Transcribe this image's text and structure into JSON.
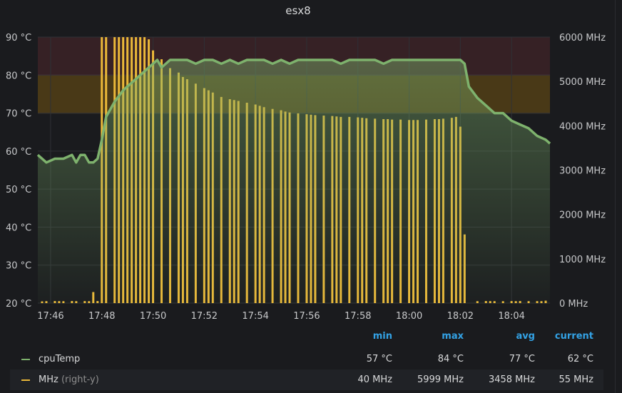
{
  "panel": {
    "title": "esx8"
  },
  "colors": {
    "background": "#1a1b1e",
    "temp_line": "#7eb26d",
    "mhz_bars": "#eab839",
    "threshold_warning": "#5a4416",
    "threshold_critical": "#3a2226",
    "legend_header": "#33a2e5"
  },
  "chart_data": {
    "type": "line+bar",
    "title": "esx8",
    "x_tick_labels": [
      "17:46",
      "17:48",
      "17:50",
      "17:52",
      "17:54",
      "17:56",
      "17:58",
      "18:00",
      "18:02",
      "18:04"
    ],
    "x_range": [
      "17:45:30",
      "18:05:30"
    ],
    "y_left": {
      "unit": "°C",
      "range": [
        20,
        90
      ],
      "tick_labels": [
        "20 °C",
        "30 °C",
        "40 °C",
        "50 °C",
        "60 °C",
        "70 °C",
        "80 °C",
        "90 °C"
      ]
    },
    "y_right": {
      "unit": "MHz",
      "range": [
        0,
        6000
      ],
      "tick_labels": [
        "0 MHz",
        "1000 MHz",
        "2000 MHz",
        "3000 MHz",
        "4000 MHz",
        "5000 MHz",
        "6000 MHz"
      ]
    },
    "thresholds": [
      {
        "from": 70,
        "to": 80,
        "level": "warning"
      },
      {
        "from": 80,
        "to": 90,
        "level": "critical"
      }
    ],
    "grid": true,
    "legend_placement": "bottom",
    "series": [
      {
        "name": "cpuTemp",
        "axis": "left",
        "style": "line-fill",
        "points": [
          [
            "17:45:30",
            59
          ],
          [
            "17:45:50",
            57
          ],
          [
            "17:46:10",
            58
          ],
          [
            "17:46:30",
            58
          ],
          [
            "17:46:50",
            59
          ],
          [
            "17:47:00",
            57
          ],
          [
            "17:47:10",
            59
          ],
          [
            "17:47:20",
            59
          ],
          [
            "17:47:30",
            57
          ],
          [
            "17:47:40",
            57
          ],
          [
            "17:47:50",
            58
          ],
          [
            "17:48:00",
            63
          ],
          [
            "17:48:10",
            69
          ],
          [
            "17:48:30",
            73
          ],
          [
            "17:48:50",
            76
          ],
          [
            "17:49:10",
            78
          ],
          [
            "17:49:30",
            80
          ],
          [
            "17:49:50",
            82
          ],
          [
            "17:50:00",
            83
          ],
          [
            "17:50:10",
            84
          ],
          [
            "17:50:20",
            82
          ],
          [
            "17:50:40",
            84
          ],
          [
            "17:51:00",
            84
          ],
          [
            "17:51:20",
            84
          ],
          [
            "17:51:40",
            83
          ],
          [
            "17:52:00",
            84
          ],
          [
            "17:52:20",
            84
          ],
          [
            "17:52:40",
            83
          ],
          [
            "17:53:00",
            84
          ],
          [
            "17:53:20",
            83
          ],
          [
            "17:53:40",
            84
          ],
          [
            "17:54:00",
            84
          ],
          [
            "17:54:20",
            84
          ],
          [
            "17:54:40",
            83
          ],
          [
            "17:55:00",
            84
          ],
          [
            "17:55:20",
            83
          ],
          [
            "17:55:40",
            84
          ],
          [
            "17:56:00",
            84
          ],
          [
            "17:56:20",
            84
          ],
          [
            "17:56:40",
            84
          ],
          [
            "17:57:00",
            84
          ],
          [
            "17:57:20",
            83
          ],
          [
            "17:57:40",
            84
          ],
          [
            "17:58:00",
            84
          ],
          [
            "17:58:20",
            84
          ],
          [
            "17:58:40",
            84
          ],
          [
            "17:59:00",
            83
          ],
          [
            "17:59:20",
            84
          ],
          [
            "17:59:40",
            84
          ],
          [
            "18:00:00",
            84
          ],
          [
            "18:00:20",
            84
          ],
          [
            "18:00:40",
            84
          ],
          [
            "18:01:00",
            84
          ],
          [
            "18:01:20",
            84
          ],
          [
            "18:01:40",
            84
          ],
          [
            "18:02:00",
            84
          ],
          [
            "18:02:10",
            83
          ],
          [
            "18:02:20",
            77
          ],
          [
            "18:02:40",
            74
          ],
          [
            "18:03:00",
            72
          ],
          [
            "18:03:20",
            70
          ],
          [
            "18:03:40",
            70
          ],
          [
            "18:04:00",
            68
          ],
          [
            "18:04:20",
            67
          ],
          [
            "18:04:40",
            66
          ],
          [
            "18:05:00",
            64
          ],
          [
            "18:05:20",
            63
          ],
          [
            "18:05:30",
            62
          ]
        ]
      },
      {
        "name": "MHz",
        "name_suffix": "(right-y)",
        "axis": "right",
        "style": "bars",
        "points": [
          [
            "17:45:40",
            40
          ],
          [
            "17:45:50",
            45
          ],
          [
            "17:46:10",
            48
          ],
          [
            "17:46:20",
            46
          ],
          [
            "17:46:30",
            44
          ],
          [
            "17:46:50",
            48
          ],
          [
            "17:47:00",
            45
          ],
          [
            "17:47:20",
            47
          ],
          [
            "17:47:30",
            45
          ],
          [
            "17:47:40",
            250
          ],
          [
            "17:47:50",
            48
          ],
          [
            "17:48:00",
            5999
          ],
          [
            "17:48:10",
            5999
          ],
          [
            "17:48:30",
            5999
          ],
          [
            "17:48:40",
            5999
          ],
          [
            "17:48:50",
            5999
          ],
          [
            "17:49:00",
            5999
          ],
          [
            "17:49:10",
            5999
          ],
          [
            "17:49:20",
            5999
          ],
          [
            "17:49:30",
            5999
          ],
          [
            "17:49:40",
            5999
          ],
          [
            "17:49:50",
            5950
          ],
          [
            "17:50:00",
            5700
          ],
          [
            "17:50:20",
            5500
          ],
          [
            "17:50:40",
            5300
          ],
          [
            "17:51:00",
            5200
          ],
          [
            "17:51:10",
            5100
          ],
          [
            "17:51:20",
            5050
          ],
          [
            "17:51:40",
            4950
          ],
          [
            "17:52:00",
            4850
          ],
          [
            "17:52:10",
            4800
          ],
          [
            "17:52:20",
            4750
          ],
          [
            "17:52:40",
            4650
          ],
          [
            "17:53:00",
            4600
          ],
          [
            "17:53:10",
            4580
          ],
          [
            "17:53:20",
            4560
          ],
          [
            "17:53:40",
            4520
          ],
          [
            "17:54:00",
            4480
          ],
          [
            "17:54:10",
            4450
          ],
          [
            "17:54:20",
            4420
          ],
          [
            "17:54:40",
            4380
          ],
          [
            "17:55:00",
            4350
          ],
          [
            "17:55:10",
            4320
          ],
          [
            "17:55:20",
            4300
          ],
          [
            "17:55:40",
            4280
          ],
          [
            "17:56:00",
            4260
          ],
          [
            "17:56:10",
            4250
          ],
          [
            "17:56:20",
            4240
          ],
          [
            "17:56:40",
            4230
          ],
          [
            "17:57:00",
            4220
          ],
          [
            "17:57:10",
            4210
          ],
          [
            "17:57:20",
            4200
          ],
          [
            "17:57:40",
            4200
          ],
          [
            "17:58:00",
            4190
          ],
          [
            "17:58:10",
            4180
          ],
          [
            "17:58:20",
            4170
          ],
          [
            "17:58:40",
            4160
          ],
          [
            "17:59:00",
            4150
          ],
          [
            "17:59:10",
            4150
          ],
          [
            "17:59:20",
            4140
          ],
          [
            "17:59:40",
            4140
          ],
          [
            "18:00:00",
            4130
          ],
          [
            "18:00:10",
            4130
          ],
          [
            "18:00:20",
            4130
          ],
          [
            "18:00:40",
            4140
          ],
          [
            "18:01:00",
            4150
          ],
          [
            "18:01:10",
            4150
          ],
          [
            "18:01:20",
            4160
          ],
          [
            "18:01:40",
            4180
          ],
          [
            "18:01:50",
            4200
          ],
          [
            "18:02:00",
            3980
          ],
          [
            "18:02:10",
            1550
          ],
          [
            "18:02:40",
            45
          ],
          [
            "18:03:00",
            48
          ],
          [
            "18:03:10",
            46
          ],
          [
            "18:03:20",
            45
          ],
          [
            "18:03:40",
            44
          ],
          [
            "18:04:00",
            47
          ],
          [
            "18:04:10",
            45
          ],
          [
            "18:04:20",
            48
          ],
          [
            "18:04:40",
            45
          ],
          [
            "18:05:00",
            46
          ],
          [
            "18:05:10",
            45
          ],
          [
            "18:05:20",
            55
          ]
        ]
      }
    ]
  },
  "legend": {
    "headers": {
      "min": "min",
      "max": "max",
      "avg": "avg",
      "current": "current"
    },
    "rows": [
      {
        "name": "cpuTemp",
        "suffix": "",
        "color": "#7eb26d",
        "min": "57 °C",
        "max": "84 °C",
        "avg": "77 °C",
        "current": "62 °C"
      },
      {
        "name": "MHz",
        "suffix": "(right-y)",
        "color": "#eab839",
        "min": "40 MHz",
        "max": "5999 MHz",
        "avg": "3458 MHz",
        "current": "55 MHz"
      }
    ]
  }
}
